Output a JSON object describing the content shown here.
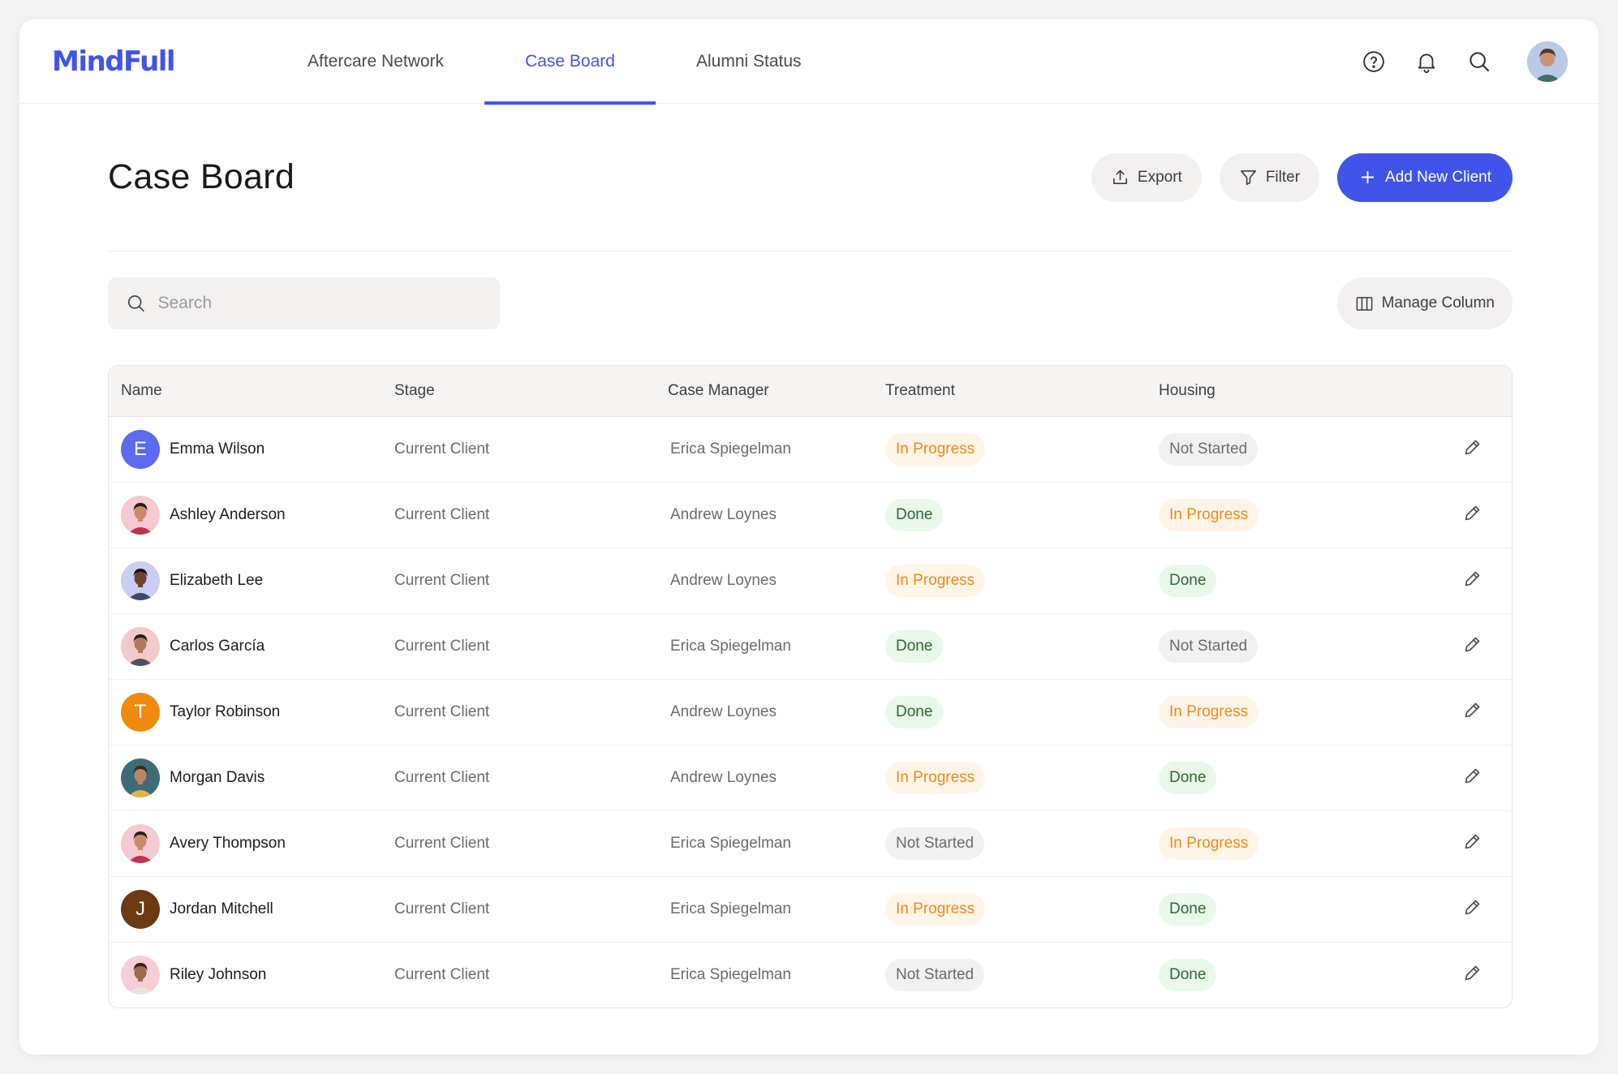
{
  "app": {
    "logo": "MindFull"
  },
  "nav": {
    "tabs": [
      {
        "label": "Aftercare Network",
        "active": false
      },
      {
        "label": "Case Board",
        "active": true
      },
      {
        "label": "Alumni Status",
        "active": false
      }
    ],
    "icons": [
      "help-icon",
      "bell-icon",
      "search-icon",
      "user-avatar"
    ]
  },
  "page": {
    "title": "Case Board",
    "export_label": "Export",
    "filter_label": "Filter",
    "add_label": "Add New Client"
  },
  "search": {
    "placeholder": "Search",
    "value": ""
  },
  "manage_column_label": "Manage Column",
  "table": {
    "headers": [
      "Name",
      "Stage",
      "Case Manager",
      "Treatment",
      "Housing"
    ],
    "rows": [
      {
        "name": "Emma Wilson",
        "avatar": {
          "type": "initial",
          "initial": "E",
          "color": "#5b6af0"
        },
        "stage": "Current Client",
        "manager": "Erica Spiegelman",
        "treatment": "In Progress",
        "housing": "Not Started"
      },
      {
        "name": "Ashley Anderson",
        "avatar": {
          "type": "photo",
          "bg": "#f6c8d2",
          "skin": "#c98a6b",
          "hair": "#2b1d16",
          "shirt": "#c0334a"
        },
        "stage": "Current Client",
        "manager": "Andrew Loynes",
        "treatment": "Done",
        "housing": "In Progress"
      },
      {
        "name": "Elizabeth Lee",
        "avatar": {
          "type": "photo",
          "bg": "#c9cdf4",
          "skin": "#6a4330",
          "hair": "#1e1410",
          "shirt": "#3a4a6a"
        },
        "stage": "Current Client",
        "manager": "Andrew Loynes",
        "treatment": "In Progress",
        "housing": "Done"
      },
      {
        "name": "Carlos García",
        "avatar": {
          "type": "photo",
          "bg": "#f4c9cc",
          "skin": "#b07a5a",
          "hair": "#2a1d17",
          "shirt": "#4b5262"
        },
        "stage": "Current Client",
        "manager": "Erica Spiegelman",
        "treatment": "Done",
        "housing": "Not Started"
      },
      {
        "name": "Taylor Robinson",
        "avatar": {
          "type": "initial",
          "initial": "T",
          "color": "#f08a0c"
        },
        "stage": "Current Client",
        "manager": "Andrew Loynes",
        "treatment": "Done",
        "housing": "In Progress"
      },
      {
        "name": "Morgan Davis",
        "avatar": {
          "type": "photo",
          "bg": "#3d6c78",
          "skin": "#b88565",
          "hair": "#3b2a1e",
          "shirt": "#e3b24a"
        },
        "stage": "Current Client",
        "manager": "Andrew Loynes",
        "treatment": "In Progress",
        "housing": "Done"
      },
      {
        "name": "Avery Thompson",
        "avatar": {
          "type": "photo",
          "bg": "#f6c8d2",
          "skin": "#c98a6b",
          "hair": "#2b1d16",
          "shirt": "#c0334a"
        },
        "stage": "Current Client",
        "manager": "Erica Spiegelman",
        "treatment": "Not Started",
        "housing": "In Progress"
      },
      {
        "name": "Jordan Mitchell",
        "avatar": {
          "type": "initial",
          "initial": "J",
          "color": "#6b3a12"
        },
        "stage": "Current Client",
        "manager": "Erica Spiegelman",
        "treatment": "In Progress",
        "housing": "Done"
      },
      {
        "name": "Riley Johnson",
        "avatar": {
          "type": "photo",
          "bg": "#f4d0d6",
          "skin": "#9a6a4e",
          "hair": "#3a2418",
          "shirt": "#e9e4de"
        },
        "stage": "Current Client",
        "manager": "Erica Spiegelman",
        "treatment": "Not Started",
        "housing": "Done"
      }
    ]
  },
  "colors": {
    "accent": "#4154ea",
    "in_progress": "#ee8a16",
    "done": "#2d6a35",
    "not_started": "#6b6b70"
  }
}
